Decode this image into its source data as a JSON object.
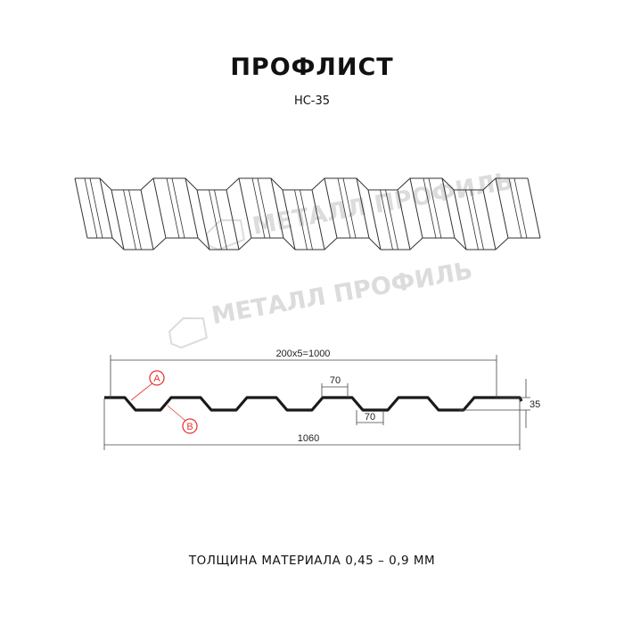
{
  "header": {
    "title": "ПРОФЛИСТ",
    "subtitle": "НС-35"
  },
  "watermark": "МЕТАЛЛ ПРОФИЛЬ",
  "section": {
    "dim_pitch": "200x5=1000",
    "dim_top_flat": "70",
    "dim_bottom_flat": "70",
    "dim_height": "35",
    "dim_total_width": "1060",
    "marker_a": "A",
    "marker_b": "B"
  },
  "footer": {
    "thickness": "ТОЛЩИНА МАТЕРИАЛА 0,45 – 0,9 ММ"
  },
  "colors": {
    "profile": "#1a1a1a",
    "marker": "#e53935",
    "watermark": "#dcdcdc"
  }
}
